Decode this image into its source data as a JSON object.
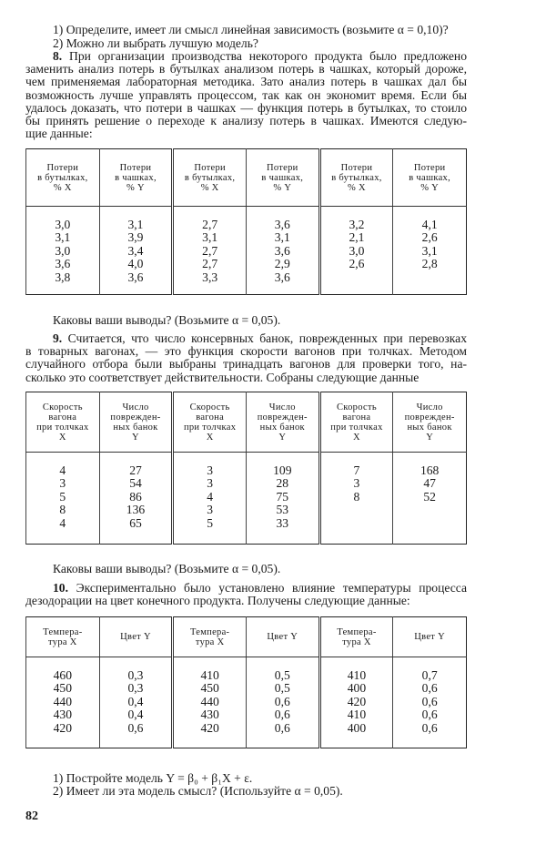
{
  "intro_questions": [
    "1) Определите, имеет ли смысл линейная зависимость (возьмите α = 0,10)?",
    "2) Можно ли выбрать лучшую модель?"
  ],
  "problem8": {
    "number": "8.",
    "lines": [
      "При организации производства некоторого продукта было предложено",
      "заменить анализ потерь в бутылках анализом потерь в чашках, который дороже,",
      "чем применяемая лабораторная методика. Зато анализ потерь в чашках дал бы",
      "возможность лучше управлять процессом, так как он экономит время. Если бы",
      "удалось доказать, что потери в чашках — функция потерь в бутылках, то стоило",
      "бы принять решение о переходе к анализу потерь в чашках. Имеются следую-",
      "щие данные:"
    ],
    "table": {
      "columns": [
        {
          "header": "Потери\nв бутылках,\n% X",
          "values": "3,0\n3,1\n3,0\n3,6\n3,8"
        },
        {
          "header": "Потери\nв чашках,\n% Y",
          "values": "3,1\n3,9\n3,4\n4,0\n3,6"
        },
        {
          "header": "Потери\nв бутылках,\n% X",
          "values": "2,7\n3,1\n2,7\n2,7\n3,3"
        },
        {
          "header": "Потери\nв чашках,\n% Y",
          "values": "3,6\n3,1\n3,6\n2,9\n3,6"
        },
        {
          "header": "Потери\nв бутылках,\n% X",
          "values": "3,2\n2,1\n3,0\n2,6"
        },
        {
          "header": "Потери\nв чашках,\n% Y",
          "values": "4,1\n2,6\n3,1\n2,8"
        }
      ]
    },
    "conclusion": "Каковы ваши выводы? (Возьмите α = 0,05)."
  },
  "problem9": {
    "number": "9.",
    "lines": [
      "Считается, что число консервных банок, поврежденных при перевозках",
      "в товарных вагонах, — это функция скорости вагонов при толчках. Методом",
      "случайного отбора были выбраны тринадцать вагонов для проверки того, на-",
      "сколько это соответствует действительности. Собраны следующие данные"
    ],
    "table": {
      "columns": [
        {
          "header": "Скорость\nвагона\nпри толчках\nX",
          "values": "4\n3\n5\n8\n4"
        },
        {
          "header": "Число\nповрежден-\nных банок\nY",
          "values": "27\n54\n86\n136\n65"
        },
        {
          "header": "Скорость\nвагона\nпри толчках\nX",
          "values": "3\n3\n4\n3\n5"
        },
        {
          "header": "Число\nповрежден-\nных банок\nY",
          "values": "109\n28\n75\n53\n33"
        },
        {
          "header": "Скорость\nвагона\nпри толчках\nX",
          "values": "7\n3\n8"
        },
        {
          "header": "Число\nповрежден-\nных банок\nY",
          "values": "168\n47\n52"
        }
      ]
    },
    "conclusion": "Каковы ваши выводы? (Возьмите α = 0,05)."
  },
  "problem10": {
    "number": "10.",
    "lines": [
      "Экспериментально было установлено влияние температуры процесса",
      "дезодорации на цвет конечного продукта. Получены следующие данные:"
    ],
    "table": {
      "columns": [
        {
          "header": "Темпера-\nтура X",
          "values": "460\n450\n440\n430\n420"
        },
        {
          "header": "Цвет Y",
          "values": "0,3\n0,3\n0,4\n0,4\n0,6"
        },
        {
          "header": "Темпера-\nтура X",
          "values": "410\n450\n440\n430\n420"
        },
        {
          "header": "Цвет Y",
          "values": "0,5\n0,5\n0,6\n0,6\n0,6"
        },
        {
          "header": "Темпера-\nтура X",
          "values": "410\n400\n420\n410\n400"
        },
        {
          "header": "Цвет Y",
          "values": "0,7\n0,6\n0,6\n0,6\n0,6"
        }
      ]
    },
    "questions": [
      "1) Постройте модель Y = β₀ + β₁X + ε.",
      "2) Имеет ли эта модель смысл? (Используйте α = 0,05)."
    ]
  },
  "page_number": "82"
}
